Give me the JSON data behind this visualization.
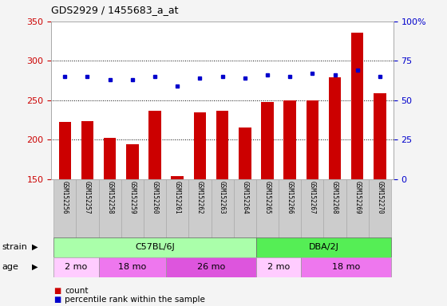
{
  "title": "GDS2929 / 1455683_a_at",
  "samples": [
    "GSM152256",
    "GSM152257",
    "GSM152258",
    "GSM152259",
    "GSM152260",
    "GSM152261",
    "GSM152262",
    "GSM152263",
    "GSM152264",
    "GSM152265",
    "GSM152266",
    "GSM152267",
    "GSM152268",
    "GSM152269",
    "GSM152270"
  ],
  "counts": [
    222,
    223,
    202,
    194,
    237,
    154,
    235,
    237,
    215,
    248,
    250,
    250,
    279,
    336,
    259
  ],
  "percentiles": [
    65,
    65,
    63,
    63,
    65,
    59,
    64,
    65,
    64,
    66,
    65,
    67,
    66,
    69,
    65
  ],
  "ylim_left": [
    150,
    350
  ],
  "ylim_right": [
    0,
    100
  ],
  "yticks_left": [
    150,
    200,
    250,
    300,
    350
  ],
  "ytick_labels_left": [
    "150",
    "200",
    "250",
    "300",
    "350"
  ],
  "yticks_right": [
    0,
    25,
    50,
    75,
    100
  ],
  "ytick_labels_right": [
    "0",
    "25",
    "50",
    "75",
    "100%"
  ],
  "bar_color": "#cc0000",
  "dot_color": "#0000cc",
  "strain_groups": [
    {
      "label": "C57BL/6J",
      "start": 0,
      "end": 9,
      "color": "#aaffaa"
    },
    {
      "label": "DBA/2J",
      "start": 9,
      "end": 15,
      "color": "#55ee55"
    }
  ],
  "age_groups": [
    {
      "label": "2 mo",
      "start": 0,
      "end": 2,
      "color": "#ffccff"
    },
    {
      "label": "18 mo",
      "start": 2,
      "end": 5,
      "color": "#ee77ee"
    },
    {
      "label": "26 mo",
      "start": 5,
      "end": 9,
      "color": "#dd55dd"
    },
    {
      "label": "2 mo",
      "start": 9,
      "end": 11,
      "color": "#ffccff"
    },
    {
      "label": "18 mo",
      "start": 11,
      "end": 15,
      "color": "#ee77ee"
    }
  ],
  "legend_count_label": "count",
  "legend_pct_label": "percentile rank within the sample",
  "strain_label": "strain",
  "age_label": "age",
  "sample_bg": "#cccccc",
  "fig_bg": "#f4f4f4"
}
